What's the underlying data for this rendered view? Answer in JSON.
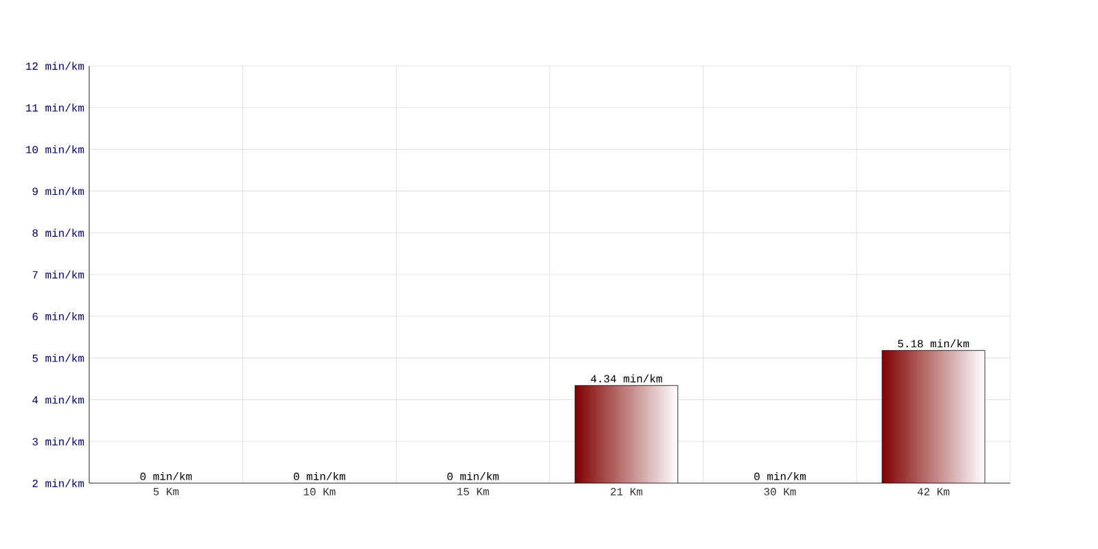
{
  "chart_data": {
    "type": "bar",
    "categories": [
      "5 Km",
      "10 Km",
      "15 Km",
      "21 Km",
      "30 Km",
      "42 Km"
    ],
    "values": [
      null,
      null,
      null,
      4.34,
      null,
      5.18
    ],
    "value_labels": [
      "0 min/km",
      "0 min/km",
      "0 min/km",
      "4.34 min/km",
      "0 min/km",
      "5.18 min/km"
    ],
    "color": "#800000",
    "ylim": [
      2,
      12
    ],
    "yticks": [
      {
        "value": 2,
        "label": "2 min/km"
      },
      {
        "value": 3,
        "label": "3 min/km"
      },
      {
        "value": 4,
        "label": "4 min/km"
      },
      {
        "value": 5,
        "label": "5 min/km"
      },
      {
        "value": 6,
        "label": "6 min/km"
      },
      {
        "value": 7,
        "label": "7 min/km"
      },
      {
        "value": 8,
        "label": "8 min/km"
      },
      {
        "value": 9,
        "label": "9 min/km"
      },
      {
        "value": 10,
        "label": "10 min/km"
      },
      {
        "value": 11,
        "label": "11 min/km"
      },
      {
        "value": 12,
        "label": "12 min/km"
      }
    ],
    "grid": true
  }
}
